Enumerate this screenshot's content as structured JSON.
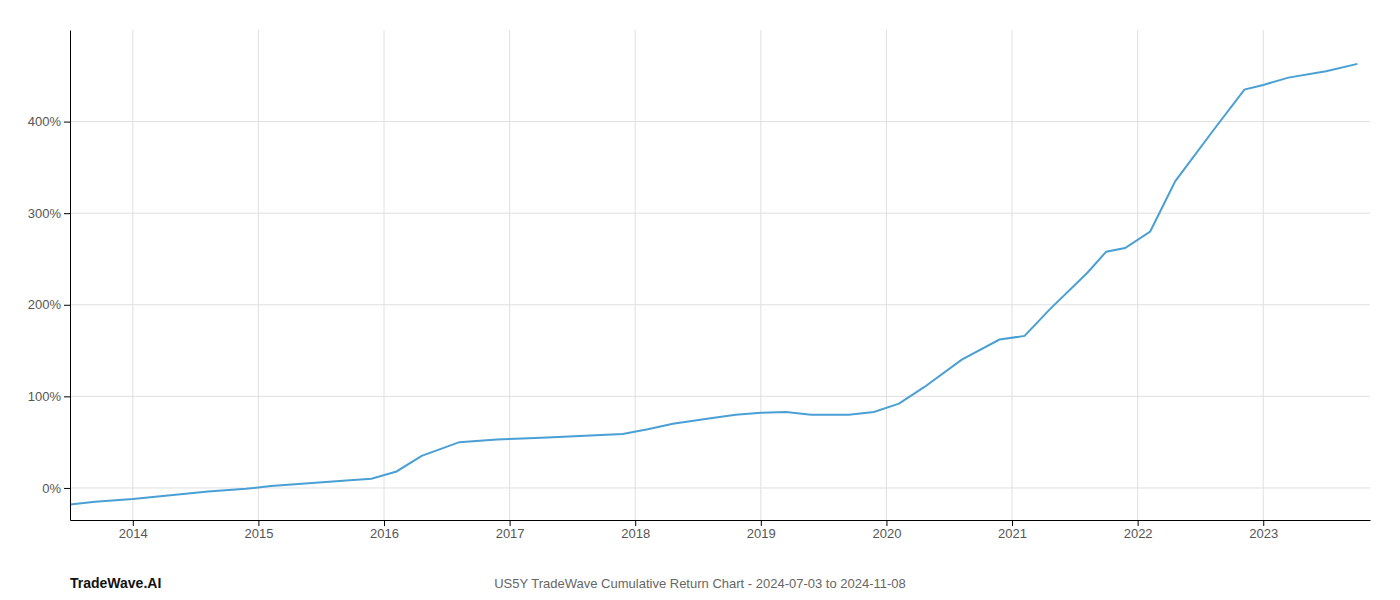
{
  "chart_data": {
    "type": "line",
    "title": "US5Y TradeWave Cumulative Return Chart - 2024-07-03 to 2024-11-08",
    "annotations": [
      {
        "text": "TradeWave.AI"
      }
    ],
    "x": [
      2013.5,
      2013.7,
      2014.0,
      2014.3,
      2014.6,
      2014.9,
      2015.1,
      2015.4,
      2015.7,
      2015.9,
      2016.1,
      2016.3,
      2016.6,
      2016.9,
      2017.1,
      2017.3,
      2017.6,
      2017.9,
      2018.1,
      2018.3,
      2018.6,
      2018.8,
      2019.0,
      2019.2,
      2019.4,
      2019.7,
      2019.9,
      2020.1,
      2020.3,
      2020.6,
      2020.9,
      2021.1,
      2021.3,
      2021.6,
      2021.75,
      2021.9,
      2022.1,
      2022.3,
      2022.6,
      2022.85,
      2023.0,
      2023.2,
      2023.5,
      2023.75
    ],
    "values": [
      -18,
      -15,
      -12,
      -8,
      -4,
      -1,
      2,
      5,
      8,
      10,
      18,
      35,
      50,
      53,
      54,
      55,
      57,
      59,
      64,
      70,
      76,
      80,
      82,
      83,
      80,
      80,
      83,
      92,
      110,
      140,
      162,
      166,
      195,
      235,
      258,
      262,
      280,
      335,
      390,
      435,
      440,
      448,
      455,
      463
    ],
    "color": "#4a9fd4",
    "xlim": [
      2013.5,
      2023.85
    ],
    "ylim": [
      -35,
      500
    ],
    "xticks": [
      2014,
      2015,
      2016,
      2017,
      2018,
      2019,
      2020,
      2021,
      2022,
      2023
    ],
    "yticks": [
      {
        "value": 0,
        "label": "0%"
      },
      {
        "value": 100,
        "label": "100%"
      },
      {
        "value": 200,
        "label": "200%"
      },
      {
        "value": 300,
        "label": "300%"
      },
      {
        "value": 400,
        "label": "400%"
      }
    ],
    "grid": true
  }
}
